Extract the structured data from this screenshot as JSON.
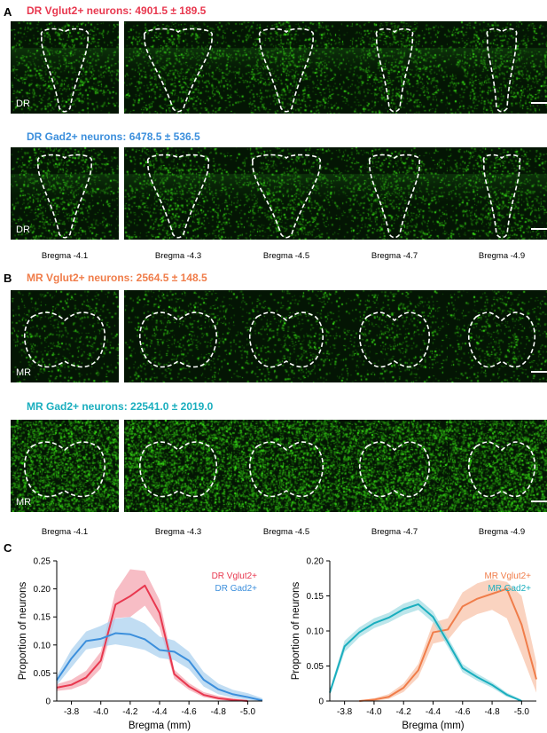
{
  "panels": {
    "A": {
      "letter": "A",
      "rows": [
        {
          "title_prefix": "DR Vglut2+ neurons",
          "title_suffix": ": 4901.5 ± 189.5",
          "color": "#e8384f",
          "region": "DR",
          "shape": "dr-teardrop"
        },
        {
          "title_prefix": "DR Gad2+ neurons: 6478.5 ± 536.5",
          "title_suffix": "",
          "color": "#3c8fdc",
          "region": "DR",
          "shape": "dr-wide"
        }
      ],
      "bregma_labels": [
        "Bregma -4.1",
        "Bregma -4.3",
        "Bregma -4.5",
        "Bregma -4.7",
        "Bregma -4.9"
      ]
    },
    "B": {
      "letter": "B",
      "rows": [
        {
          "title_prefix": "MR Vglut2+ neurons: 2564.5 ± 148.5",
          "title_suffix": "",
          "color": "#f07d4a",
          "region": "MR",
          "shape": "mr"
        },
        {
          "title_prefix": "MR Gad2+ neurons: 22541.0 ± 2019.0",
          "title_suffix": "",
          "color": "#1aaebe",
          "region": "MR",
          "shape": "mr"
        }
      ],
      "bregma_labels": [
        "Bregma -4.1",
        "Bregma -4.3",
        "Bregma -4.5",
        "Bregma -4.7",
        "Bregma -4.9"
      ]
    },
    "C": {
      "letter": "C"
    }
  },
  "chart_data": [
    {
      "type": "line",
      "xlabel": "Bregma (mm)",
      "ylabel": "Proportion of neurons",
      "xlim": [
        -3.7,
        -5.1
      ],
      "ylim": [
        0,
        0.25
      ],
      "xticks": [
        "-3.8",
        "-4.0",
        "-4.2",
        "-4.4",
        "-4.6",
        "-4.8",
        "-5.0"
      ],
      "yticks": [
        "0",
        "0.05",
        "0.10",
        "0.15",
        "0.20",
        "0.25"
      ],
      "legend_position": "top-right",
      "series": [
        {
          "name": "DR Vglut2+",
          "color": "#e8384f",
          "band_color": "#f4a1ad",
          "x": [
            -3.7,
            -3.8,
            -3.9,
            -4.0,
            -4.1,
            -4.2,
            -4.3,
            -4.4,
            -4.5,
            -4.6,
            -4.7,
            -4.8,
            -4.9,
            -5.0
          ],
          "y": [
            0.024,
            0.029,
            0.042,
            0.072,
            0.172,
            0.187,
            0.206,
            0.157,
            0.048,
            0.026,
            0.011,
            0.005,
            0.002,
            0.0
          ],
          "lower": [
            0.018,
            0.021,
            0.031,
            0.058,
            0.148,
            0.15,
            0.17,
            0.131,
            0.04,
            0.02,
            0.007,
            0.002,
            0.0,
            0.0
          ],
          "upper": [
            0.03,
            0.038,
            0.054,
            0.088,
            0.196,
            0.235,
            0.232,
            0.18,
            0.056,
            0.032,
            0.016,
            0.009,
            0.005,
            0.002
          ]
        },
        {
          "name": "DR Gad2+",
          "color": "#3c8fdc",
          "band_color": "#a7cfee",
          "x": [
            -3.7,
            -3.8,
            -3.9,
            -4.0,
            -4.1,
            -4.2,
            -4.3,
            -4.4,
            -4.5,
            -4.6,
            -4.7,
            -4.8,
            -4.9,
            -5.0,
            -5.1
          ],
          "y": [
            0.037,
            0.076,
            0.107,
            0.111,
            0.121,
            0.119,
            0.11,
            0.091,
            0.088,
            0.072,
            0.038,
            0.021,
            0.012,
            0.007,
            0.001
          ],
          "lower": [
            0.028,
            0.06,
            0.092,
            0.097,
            0.101,
            0.097,
            0.091,
            0.077,
            0.073,
            0.057,
            0.026,
            0.012,
            0.006,
            0.002,
            0.0
          ],
          "upper": [
            0.045,
            0.092,
            0.124,
            0.134,
            0.147,
            0.15,
            0.138,
            0.115,
            0.108,
            0.088,
            0.052,
            0.031,
            0.02,
            0.014,
            0.005
          ]
        }
      ]
    },
    {
      "type": "line",
      "xlabel": "Bregma (mm)",
      "ylabel": "Proportion of neurons",
      "xlim": [
        -3.7,
        -5.1
      ],
      "ylim": [
        0,
        0.2
      ],
      "xticks": [
        "-3.8",
        "-4.0",
        "-4.2",
        "-4.4",
        "-4.6",
        "-4.8",
        "-5.0"
      ],
      "yticks": [
        "0",
        "0.05",
        "0.10",
        "0.15",
        "0.20"
      ],
      "legend_position": "top-right",
      "series": [
        {
          "name": "MR Vglut2+",
          "color": "#f07d4a",
          "band_color": "#f8c1a5",
          "x": [
            -3.9,
            -4.0,
            -4.1,
            -4.2,
            -4.3,
            -4.4,
            -4.5,
            -4.6,
            -4.7,
            -4.8,
            -4.9,
            -5.0,
            -5.1
          ],
          "y": [
            0.0,
            0.002,
            0.006,
            0.019,
            0.044,
            0.098,
            0.102,
            0.135,
            0.146,
            0.153,
            0.16,
            0.109,
            0.031
          ],
          "lower": [
            0.0,
            0.0,
            0.003,
            0.013,
            0.034,
            0.082,
            0.087,
            0.113,
            0.124,
            0.13,
            0.118,
            0.067,
            0.012
          ],
          "upper": [
            0.001,
            0.004,
            0.01,
            0.025,
            0.053,
            0.112,
            0.118,
            0.155,
            0.168,
            0.174,
            0.17,
            0.15,
            0.055
          ]
        },
        {
          "name": "MR Gad2+",
          "color": "#1aaebe",
          "band_color": "#9fdce3",
          "x": [
            -3.7,
            -3.8,
            -3.9,
            -4.0,
            -4.1,
            -4.2,
            -4.3,
            -4.4,
            -4.5,
            -4.6,
            -4.7,
            -4.8,
            -4.9,
            -5.0
          ],
          "y": [
            0.012,
            0.078,
            0.098,
            0.111,
            0.119,
            0.131,
            0.138,
            0.12,
            0.084,
            0.047,
            0.034,
            0.023,
            0.009,
            0.0
          ],
          "lower": [
            0.008,
            0.07,
            0.091,
            0.104,
            0.112,
            0.123,
            0.13,
            0.112,
            0.077,
            0.041,
            0.029,
            0.019,
            0.006,
            0.0
          ],
          "upper": [
            0.016,
            0.086,
            0.105,
            0.118,
            0.126,
            0.139,
            0.146,
            0.128,
            0.091,
            0.053,
            0.039,
            0.027,
            0.012,
            0.002
          ]
        }
      ]
    }
  ]
}
